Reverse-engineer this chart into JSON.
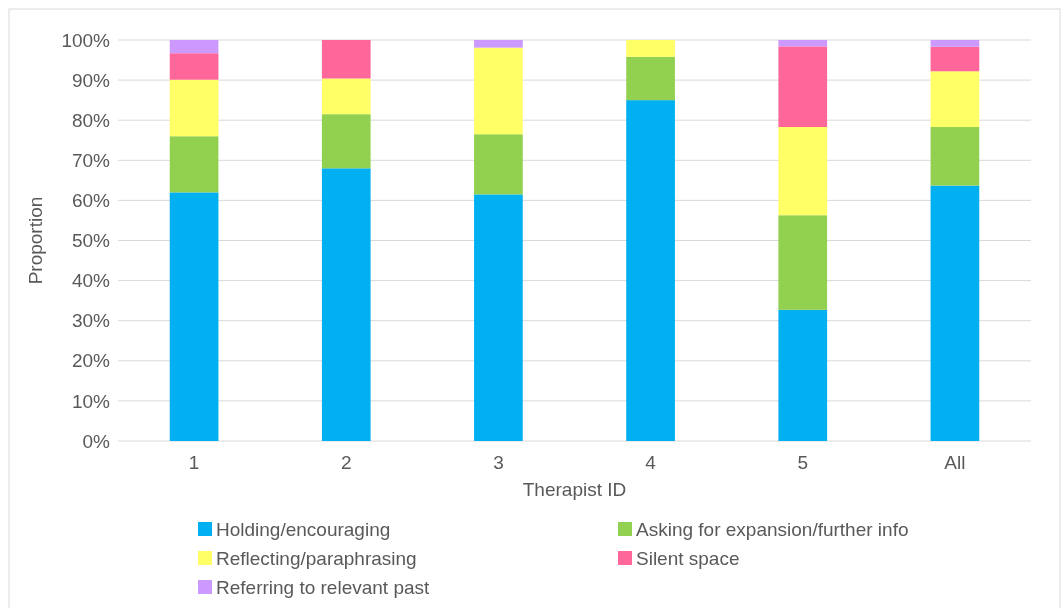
{
  "chart_data": {
    "type": "bar",
    "stacked": true,
    "xlabel": "Therapist ID",
    "ylabel": "Proportion",
    "categories": [
      "1",
      "2",
      "3",
      "4",
      "5",
      "All"
    ],
    "series": [
      {
        "name": "Holding/encouraging",
        "color": "#00b0f0",
        "values": [
          62,
          68,
          61.5,
          85,
          32.7,
          63.7
        ]
      },
      {
        "name": "Asking for expansion/further info",
        "color": "#92d050",
        "values": [
          14,
          13.5,
          15,
          10.8,
          23.6,
          14.6
        ]
      },
      {
        "name": "Reflecting/paraphrasing",
        "color": "#ffff66",
        "values": [
          14.1,
          8.9,
          21.6,
          4.2,
          22,
          13.9
        ]
      },
      {
        "name": "Silent space",
        "color": "#ff6699",
        "values": [
          6.6,
          9.6,
          0,
          0,
          20.1,
          6.1
        ]
      },
      {
        "name": "Referring to relevant past",
        "color": "#cc99ff",
        "values": [
          3.3,
          0,
          1.9,
          0,
          1.6,
          1.7
        ]
      }
    ],
    "ylim": [
      0,
      100
    ],
    "yticks": [
      {
        "value": 0,
        "label": "0%"
      },
      {
        "value": 10,
        "label": "10%"
      },
      {
        "value": 20,
        "label": "20%"
      },
      {
        "value": 30,
        "label": "30%"
      },
      {
        "value": 40,
        "label": "40%"
      },
      {
        "value": 50,
        "label": "50%"
      },
      {
        "value": 60,
        "label": "60%"
      },
      {
        "value": 70,
        "label": "70%"
      },
      {
        "value": 80,
        "label": "80%"
      },
      {
        "value": 90,
        "label": "90%"
      },
      {
        "value": 100,
        "label": "100%"
      }
    ],
    "grid": "y",
    "legend": "bottom"
  }
}
